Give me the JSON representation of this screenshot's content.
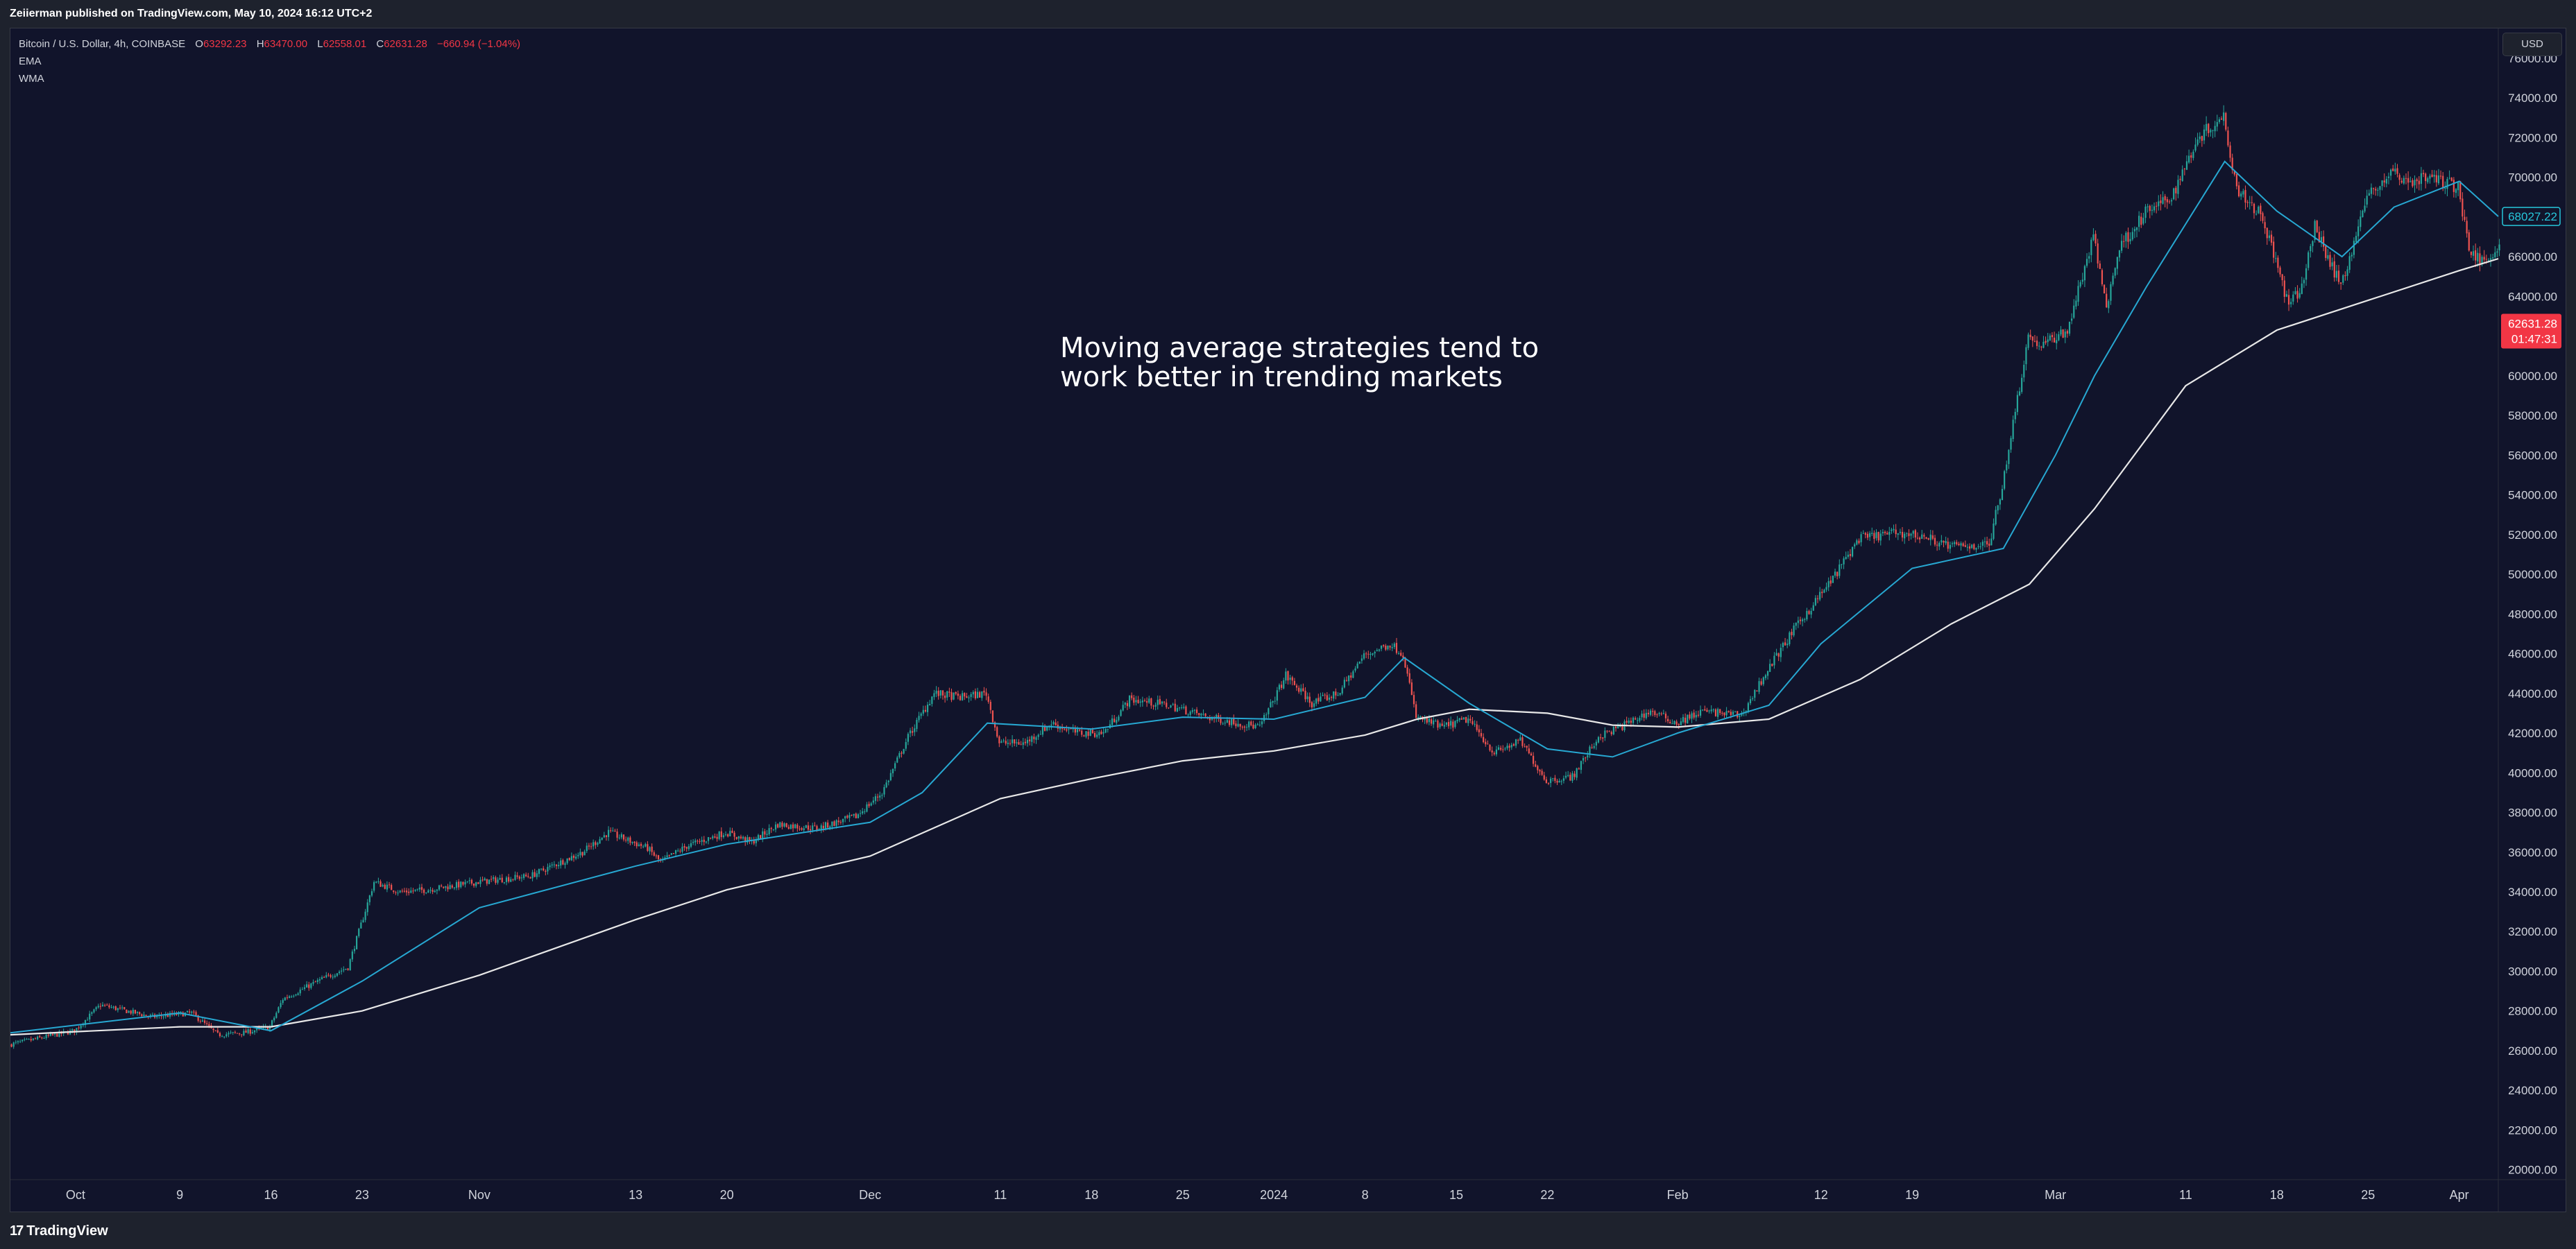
{
  "header": {
    "published_text": "Zeiierman published on TradingView.com, May 10, 2024 16:12 UTC+2"
  },
  "legend": {
    "symbol": "Bitcoin / U.S. Dollar, 4h, COINBASE",
    "open_label": "O",
    "open": "63292.23",
    "high_label": "H",
    "high": "63470.00",
    "low_label": "L",
    "low": "62558.01",
    "close_label": "C",
    "close": "62631.28",
    "change": "−660.94 (−1.04%)",
    "indicators": [
      "EMA",
      "WMA"
    ]
  },
  "currency_button": "USD",
  "annotation": "Moving average strategies tend to\nwork better in trending markets",
  "footer": {
    "brand": "TradingView",
    "logo": "tradingview-logo-icon"
  },
  "colors": {
    "background": "#11142b",
    "up": "#26a69a",
    "down": "#ef5350",
    "ema": "#27a8d2",
    "wma": "#e8e8e8",
    "last_price_bg": "#f23645",
    "ema_badge": "#26c6da"
  },
  "chart_data": {
    "type": "candlestick",
    "timeframe": "4h",
    "y_axis_side": "right",
    "ylim": [
      19500,
      77500
    ],
    "y_ticks": [
      20000,
      22000,
      24000,
      26000,
      28000,
      30000,
      32000,
      34000,
      36000,
      38000,
      40000,
      42000,
      44000,
      46000,
      48000,
      50000,
      52000,
      54000,
      56000,
      58000,
      60000,
      62000,
      64000,
      66000,
      68000,
      70000,
      72000,
      74000,
      76000
    ],
    "y_tick_labels": [
      "20000.00",
      "22000.00",
      "24000.00",
      "26000.00",
      "28000.00",
      "30000.00",
      "32000.00",
      "34000.00",
      "36000.00",
      "38000.00",
      "40000.00",
      "42000.00",
      "44000.00",
      "46000.00",
      "48000.00",
      "50000.00",
      "52000.00",
      "54000.00",
      "56000.00",
      "58000.00",
      "60000.00",
      "62000.00",
      "64000.00",
      "66000.00",
      "68000.00",
      "70000.00",
      "72000.00",
      "74000.00",
      "76000.00"
    ],
    "x_tick_labels": [
      "Oct",
      "9",
      "16",
      "23",
      "Nov",
      "13",
      "20",
      "Dec",
      "11",
      "18",
      "25",
      "2024",
      "8",
      "15",
      "22",
      "Feb",
      "12",
      "19",
      "Mar",
      "11",
      "18",
      "25",
      "Apr"
    ],
    "x_tick_dates": [
      "2023-10-01",
      "2023-10-09",
      "2023-10-16",
      "2023-10-23",
      "2023-11-01",
      "2023-11-13",
      "2023-11-20",
      "2023-12-01",
      "2023-12-11",
      "2023-12-18",
      "2023-12-25",
      "2024-01-01",
      "2024-01-08",
      "2024-01-15",
      "2024-01-22",
      "2024-02-01",
      "2024-02-12",
      "2024-02-19",
      "2024-03-01",
      "2024-03-11",
      "2024-03-18",
      "2024-03-25",
      "2024-04-01"
    ],
    "x_range": [
      "2023-09-26",
      "2024-04-04"
    ],
    "last_price": 62631.28,
    "last_price_label": "62631.28",
    "last_price_countdown": "01:47:31",
    "ema_value": 68027.22,
    "ema_value_label": "68027.22",
    "price_path": [
      [
        "2023-09-26",
        26300
      ],
      [
        "2023-10-01",
        27000
      ],
      [
        "2023-10-03",
        28300
      ],
      [
        "2023-10-07",
        27700
      ],
      [
        "2023-10-10",
        27900
      ],
      [
        "2023-10-12",
        26800
      ],
      [
        "2023-10-14",
        26900
      ],
      [
        "2023-10-16",
        27200
      ],
      [
        "2023-10-17",
        28600
      ],
      [
        "2023-10-20",
        29600
      ],
      [
        "2023-10-22",
        30200
      ],
      [
        "2023-10-24",
        34500
      ],
      [
        "2023-10-26",
        34000
      ],
      [
        "2023-10-28",
        34100
      ],
      [
        "2023-11-01",
        34500
      ],
      [
        "2023-11-05",
        34800
      ],
      [
        "2023-11-09",
        36000
      ],
      [
        "2023-11-11",
        37000
      ],
      [
        "2023-11-14",
        36200
      ],
      [
        "2023-11-15",
        35500
      ],
      [
        "2023-11-17",
        36300
      ],
      [
        "2023-11-20",
        37000
      ],
      [
        "2023-11-22",
        36500
      ],
      [
        "2023-11-24",
        37400
      ],
      [
        "2023-11-27",
        37200
      ],
      [
        "2023-11-30",
        37800
      ],
      [
        "2023-12-02",
        39000
      ],
      [
        "2023-12-04",
        41800
      ],
      [
        "2023-12-06",
        44000
      ],
      [
        "2023-12-08",
        43800
      ],
      [
        "2023-12-10",
        44000
      ],
      [
        "2023-12-11",
        41500
      ],
      [
        "2023-12-13",
        41500
      ],
      [
        "2023-12-15",
        42500
      ],
      [
        "2023-12-17",
        42000
      ],
      [
        "2023-12-19",
        42000
      ],
      [
        "2023-12-21",
        43700
      ],
      [
        "2023-12-24",
        43400
      ],
      [
        "2023-12-27",
        42800
      ],
      [
        "2023-12-31",
        42300
      ],
      [
        "2024-01-02",
        44900
      ],
      [
        "2024-01-04",
        43500
      ],
      [
        "2024-01-06",
        44000
      ],
      [
        "2024-01-08",
        45900
      ],
      [
        "2024-01-10",
        46500
      ],
      [
        "2024-01-11",
        46000
      ],
      [
        "2024-01-12",
        42800
      ],
      [
        "2024-01-14",
        42300
      ],
      [
        "2024-01-16",
        42700
      ],
      [
        "2024-01-18",
        41000
      ],
      [
        "2024-01-20",
        41600
      ],
      [
        "2024-01-22",
        39600
      ],
      [
        "2024-01-24",
        39800
      ],
      [
        "2024-01-26",
        41800
      ],
      [
        "2024-01-28",
        42400
      ],
      [
        "2024-01-30",
        43100
      ],
      [
        "2024-02-01",
        42500
      ],
      [
        "2024-02-03",
        43100
      ],
      [
        "2024-02-06",
        42900
      ],
      [
        "2024-02-08",
        45200
      ],
      [
        "2024-02-10",
        47200
      ],
      [
        "2024-02-13",
        49800
      ],
      [
        "2024-02-15",
        51800
      ],
      [
        "2024-02-18",
        52100
      ],
      [
        "2024-02-20",
        51900
      ],
      [
        "2024-02-22",
        51400
      ],
      [
        "2024-02-25",
        51500
      ],
      [
        "2024-02-26",
        54500
      ],
      [
        "2024-02-28",
        62000
      ],
      [
        "2024-02-29",
        61500
      ],
      [
        "2024-03-02",
        62300
      ],
      [
        "2024-03-04",
        67000
      ],
      [
        "2024-03-05",
        63500
      ],
      [
        "2024-03-06",
        66500
      ],
      [
        "2024-03-08",
        68200
      ],
      [
        "2024-03-10",
        69000
      ],
      [
        "2024-03-12",
        72000
      ],
      [
        "2024-03-14",
        73100
      ],
      [
        "2024-03-15",
        69500
      ],
      [
        "2024-03-17",
        68000
      ],
      [
        "2024-03-19",
        63500
      ],
      [
        "2024-03-20",
        64500
      ],
      [
        "2024-03-21",
        67500
      ],
      [
        "2024-03-23",
        64500
      ],
      [
        "2024-03-25",
        69000
      ],
      [
        "2024-03-27",
        70300
      ],
      [
        "2024-03-28",
        69800
      ],
      [
        "2024-03-30",
        70000
      ],
      [
        "2024-04-01",
        69500
      ],
      [
        "2024-04-02",
        66000
      ],
      [
        "2024-04-03",
        65800
      ],
      [
        "2024-04-04",
        66500
      ]
    ],
    "ema_path": [
      [
        "2023-09-26",
        26900
      ],
      [
        "2023-10-09",
        27900
      ],
      [
        "2023-10-16",
        27000
      ],
      [
        "2023-10-23",
        29500
      ],
      [
        "2023-11-01",
        33200
      ],
      [
        "2023-11-13",
        35300
      ],
      [
        "2023-11-20",
        36400
      ],
      [
        "2023-12-01",
        37500
      ],
      [
        "2023-12-05",
        39000
      ],
      [
        "2023-12-10",
        42500
      ],
      [
        "2023-12-18",
        42200
      ],
      [
        "2023-12-25",
        42800
      ],
      [
        "2024-01-01",
        42700
      ],
      [
        "2024-01-08",
        43800
      ],
      [
        "2024-01-11",
        45800
      ],
      [
        "2024-01-16",
        43500
      ],
      [
        "2024-01-22",
        41200
      ],
      [
        "2024-01-27",
        40800
      ],
      [
        "2024-02-01",
        42000
      ],
      [
        "2024-02-08",
        43400
      ],
      [
        "2024-02-12",
        46500
      ],
      [
        "2024-02-19",
        50300
      ],
      [
        "2024-02-26",
        51300
      ],
      [
        "2024-03-01",
        56000
      ],
      [
        "2024-03-04",
        60000
      ],
      [
        "2024-03-08",
        64500
      ],
      [
        "2024-03-14",
        70800
      ],
      [
        "2024-03-18",
        68300
      ],
      [
        "2024-03-23",
        66000
      ],
      [
        "2024-03-27",
        68500
      ],
      [
        "2024-04-01",
        69800
      ],
      [
        "2024-04-04",
        68027
      ]
    ],
    "wma_path": [
      [
        "2023-09-26",
        26800
      ],
      [
        "2023-10-09",
        27200
      ],
      [
        "2023-10-16",
        27200
      ],
      [
        "2023-10-23",
        28000
      ],
      [
        "2023-11-01",
        29800
      ],
      [
        "2023-11-13",
        32600
      ],
      [
        "2023-11-20",
        34100
      ],
      [
        "2023-12-01",
        35800
      ],
      [
        "2023-12-11",
        38700
      ],
      [
        "2023-12-18",
        39700
      ],
      [
        "2023-12-25",
        40600
      ],
      [
        "2024-01-01",
        41100
      ],
      [
        "2024-01-08",
        41900
      ],
      [
        "2024-01-12",
        42700
      ],
      [
        "2024-01-16",
        43200
      ],
      [
        "2024-01-22",
        43000
      ],
      [
        "2024-01-27",
        42400
      ],
      [
        "2024-02-01",
        42300
      ],
      [
        "2024-02-08",
        42700
      ],
      [
        "2024-02-15",
        44700
      ],
      [
        "2024-02-22",
        47500
      ],
      [
        "2024-02-28",
        49500
      ],
      [
        "2024-03-04",
        53300
      ],
      [
        "2024-03-11",
        59500
      ],
      [
        "2024-03-18",
        62300
      ],
      [
        "2024-03-25",
        63800
      ],
      [
        "2024-04-01",
        65300
      ],
      [
        "2024-04-04",
        65900
      ]
    ]
  }
}
